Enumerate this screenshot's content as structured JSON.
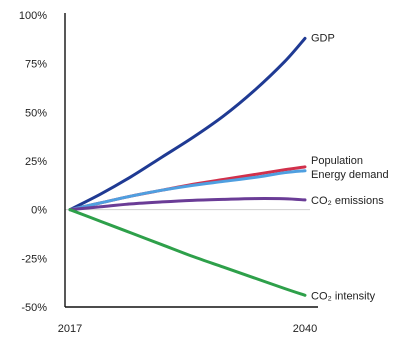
{
  "chart_data": {
    "type": "line",
    "x_ticks": [
      "2017",
      "2040"
    ],
    "x": [
      2017,
      2020,
      2023,
      2026,
      2029,
      2032,
      2035,
      2038,
      2040
    ],
    "y_ticks": [
      "100%",
      "75%",
      "50%",
      "25%",
      "0%",
      "-25%",
      "-50%"
    ],
    "ylim": [
      -50,
      100
    ],
    "grid": false,
    "series": [
      {
        "name": "GDP",
        "label": "GDP",
        "color": "#1f3a93",
        "values": [
          0,
          8,
          17,
          27,
          37,
          48,
          61,
          76,
          88
        ]
      },
      {
        "name": "Population",
        "label": "Population",
        "color": "#d1304b",
        "values": [
          0,
          3.5,
          7,
          10,
          13,
          15.5,
          18,
          20.5,
          22
        ]
      },
      {
        "name": "Energy demand",
        "label": "Energy demand",
        "color": "#4f9fe0",
        "values": [
          0,
          3.5,
          7,
          10,
          12.5,
          14.5,
          16.5,
          19,
          20
        ]
      },
      {
        "name": "CO₂ emissions",
        "label": "CO₂ emissions",
        "color": "#6a3c96",
        "values": [
          0,
          1.5,
          3,
          4,
          4.8,
          5.3,
          5.7,
          5.6,
          5
        ]
      },
      {
        "name": "CO₂ intensity",
        "label": "CO₂ intensity",
        "color": "#2ea04a",
        "values": [
          0,
          -6,
          -12,
          -18,
          -24,
          -29.5,
          -35,
          -40.5,
          -44
        ]
      }
    ]
  }
}
